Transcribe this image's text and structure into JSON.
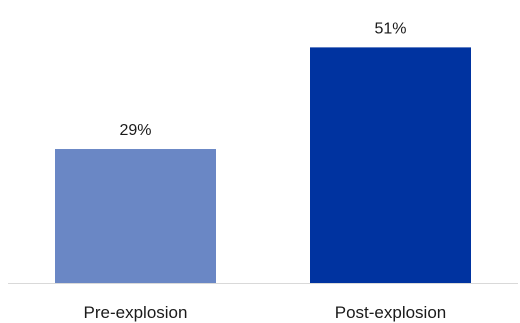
{
  "chart_data": {
    "type": "bar",
    "title": "",
    "xlabel": "",
    "ylabel": "",
    "categories": [
      "Pre-explosion",
      "Post-explosion"
    ],
    "values": [
      29,
      51
    ],
    "data_labels": [
      "29%",
      "51%"
    ],
    "unit": "%",
    "ylim": [
      0,
      60
    ],
    "grid": false,
    "legend": "none",
    "bar_colors": [
      "#6a87c5",
      "#0033a0"
    ],
    "axis_color": "#d9d9d9"
  }
}
